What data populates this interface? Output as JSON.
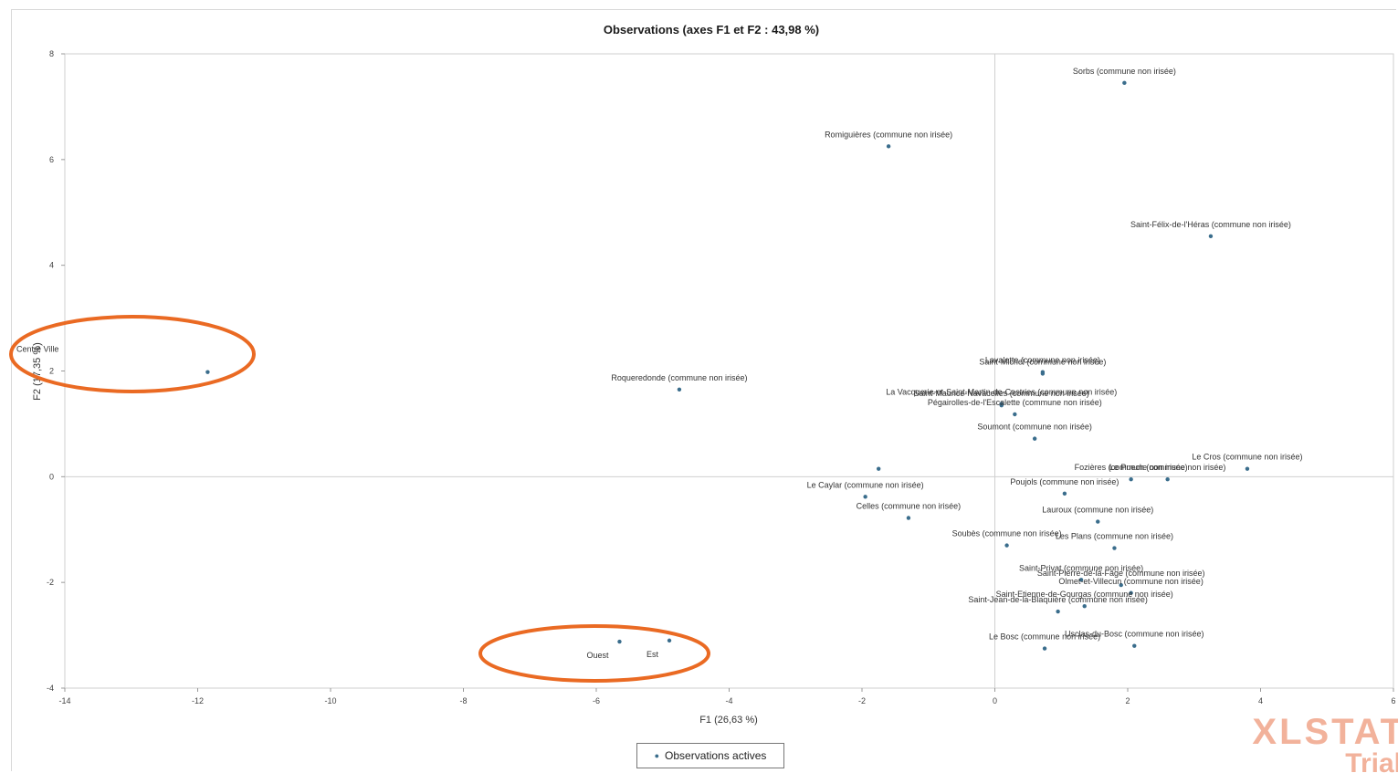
{
  "colors": {
    "point": "#3a6d8c",
    "highlight": "#ea6a23",
    "axis": "#cfcfcf",
    "watermark": "#f0a58a"
  },
  "chart_data": {
    "type": "scatter",
    "title": "Observations (axes F1 et F2 : 43,98 %)",
    "xlabel": "F1 (26,63 %)",
    "ylabel": "F2 (17,35 %)",
    "xlim": [
      -14,
      6
    ],
    "ylim": [
      -4,
      8
    ],
    "xticks": [
      -14,
      -12,
      -10,
      -8,
      -6,
      -4,
      -2,
      0,
      2,
      4,
      6
    ],
    "yticks": [
      -4,
      -2,
      0,
      2,
      4,
      6,
      8
    ],
    "grid": false,
    "legend": {
      "position": "bottom",
      "entries": [
        "Observations actives"
      ]
    },
    "points": [
      {
        "label": "Sorbs (commune non irisée)",
        "x": 1.95,
        "y": 7.45
      },
      {
        "label": "Romiguières (commune non irisée)",
        "x": -1.6,
        "y": 6.25
      },
      {
        "label": "Saint-Félix-de-l'Héras (commune non irisée)",
        "x": 3.25,
        "y": 4.55
      },
      {
        "label": "Centre Ville",
        "x": -11.85,
        "y": 1.98
      },
      {
        "label": "Roqueredonde (commune non irisée)",
        "x": -4.75,
        "y": 1.65
      },
      {
        "label": "Lavalette (commune non irisée)",
        "x": 0.72,
        "y": 1.98
      },
      {
        "label": "Saint-Michel (commune non irisée)",
        "x": 0.72,
        "y": 1.95
      },
      {
        "label": "La Vacquerie-et-Saint-Martin-de-Castries (commune non irisée)",
        "x": 0.1,
        "y": 1.38
      },
      {
        "label": "Saint-Maurice-Navacelles (commune non irisée)",
        "x": 0.1,
        "y": 1.35
      },
      {
        "label": "Pégairolles-de-l'Escalette (commune non irisée)",
        "x": 0.3,
        "y": 1.18
      },
      {
        "label": "Soumont (commune non irisée)",
        "x": 0.6,
        "y": 0.72
      },
      {
        "label": "Le Cros (commune non irisée)",
        "x": 3.8,
        "y": 0.15
      },
      {
        "label": "",
        "x": -1.75,
        "y": 0.15
      },
      {
        "label": "Fozières (commune non irisée)",
        "x": 2.05,
        "y": -0.05
      },
      {
        "label": "Le Puech (commune non irisée)",
        "x": 2.6,
        "y": -0.05
      },
      {
        "label": "Le Caylar (commune non irisée)",
        "x": -1.95,
        "y": -0.38
      },
      {
        "label": "Celles (commune non irisée)",
        "x": -1.3,
        "y": -0.78
      },
      {
        "label": "Poujols (commune non irisée)",
        "x": 1.05,
        "y": -0.32
      },
      {
        "label": "Lauroux (commune non irisée)",
        "x": 1.55,
        "y": -0.85
      },
      {
        "label": "Soubès (commune non irisée)",
        "x": 0.18,
        "y": -1.3
      },
      {
        "label": "Les Plans (commune non irisée)",
        "x": 1.8,
        "y": -1.35
      },
      {
        "label": "Saint-Privat (commune non irisée)",
        "x": 1.3,
        "y": -1.95
      },
      {
        "label": "Saint-Pierre-de-la-Fage (commune non irisée)",
        "x": 1.9,
        "y": -2.05
      },
      {
        "label": "Olmet-et-Villecun (commune non irisée)",
        "x": 2.05,
        "y": -2.2
      },
      {
        "label": "Saint-Etienne-de-Gourgas (commune non irisée)",
        "x": 1.35,
        "y": -2.45
      },
      {
        "label": "Saint-Jean-de-la-Blaquière (commune non irisée)",
        "x": 0.95,
        "y": -2.55
      },
      {
        "label": "Usclas-du-Bosc (commune non irisée)",
        "x": 2.1,
        "y": -3.2
      },
      {
        "label": "Le Bosc (commune non irisée)",
        "x": 0.75,
        "y": -3.25
      },
      {
        "label": "Ouest",
        "x": -5.65,
        "y": -3.12
      },
      {
        "label": "Est",
        "x": -4.9,
        "y": -3.1
      }
    ]
  },
  "watermark": {
    "line1": "XLSTAT",
    "line2": "Trial"
  }
}
